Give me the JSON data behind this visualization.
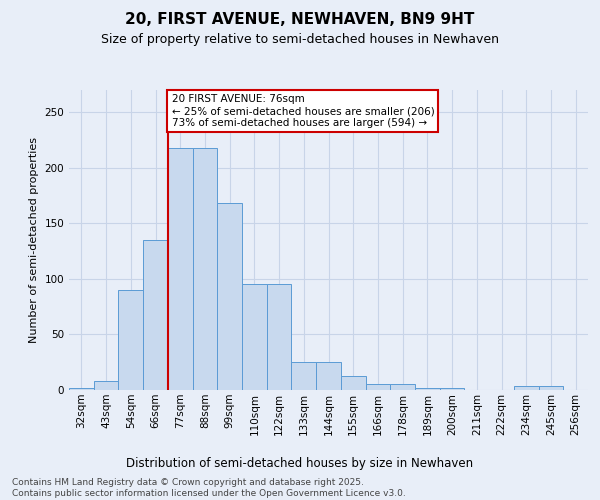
{
  "title": "20, FIRST AVENUE, NEWHAVEN, BN9 9HT",
  "subtitle": "Size of property relative to semi-detached houses in Newhaven",
  "xlabel": "Distribution of semi-detached houses by size in Newhaven",
  "ylabel": "Number of semi-detached properties",
  "categories": [
    "32sqm",
    "43sqm",
    "54sqm",
    "66sqm",
    "77sqm",
    "88sqm",
    "99sqm",
    "110sqm",
    "122sqm",
    "133sqm",
    "144sqm",
    "155sqm",
    "166sqm",
    "178sqm",
    "189sqm",
    "200sqm",
    "211sqm",
    "222sqm",
    "234sqm",
    "245sqm",
    "256sqm"
  ],
  "values": [
    2,
    8,
    90,
    135,
    218,
    218,
    168,
    95,
    95,
    25,
    25,
    13,
    5,
    5,
    2,
    2,
    0,
    0,
    4,
    4,
    0
  ],
  "bar_color": "#c8d9ee",
  "bar_edge_color": "#5b9bd5",
  "property_line_bar_index": 4,
  "annotation_text": "20 FIRST AVENUE: 76sqm\n← 25% of semi-detached houses are smaller (206)\n73% of semi-detached houses are larger (594) →",
  "annotation_box_facecolor": "#ffffff",
  "annotation_box_edgecolor": "#cc0000",
  "vline_color": "#cc0000",
  "grid_color": "#c8d4e8",
  "background_color": "#e8eef8",
  "footer_line1": "Contains HM Land Registry data © Crown copyright and database right 2025.",
  "footer_line2": "Contains public sector information licensed under the Open Government Licence v3.0.",
  "ylim_max": 270,
  "title_fontsize": 11,
  "subtitle_fontsize": 9,
  "ylabel_fontsize": 8,
  "xlabel_fontsize": 8.5,
  "tick_fontsize": 7.5,
  "annot_fontsize": 7.5,
  "footer_fontsize": 6.5
}
